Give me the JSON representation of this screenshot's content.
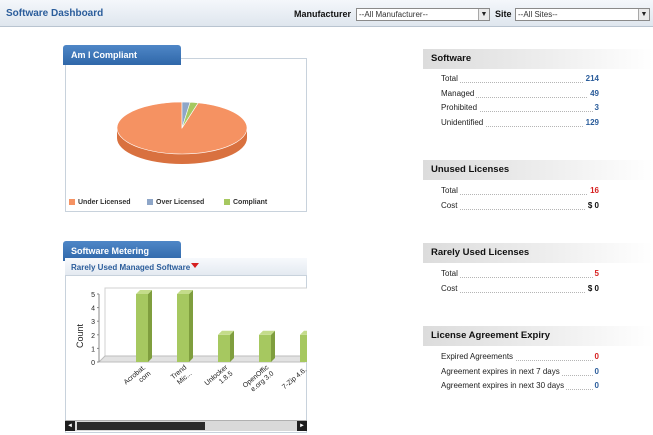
{
  "header": {
    "title": "Software Dashboard",
    "manufacturer_label": "Manufacturer",
    "manufacturer_value": "--All Manufacturer--",
    "site_label": "Site",
    "site_value": "--All Sites--"
  },
  "compliance": {
    "title": "Am I Compliant",
    "legend": [
      "Under Licensed",
      "Over Licensed",
      "Compliant"
    ],
    "colors": {
      "under": "#f59262",
      "over": "#8ea6c8",
      "compliant": "#a6c860"
    }
  },
  "chart_data": {
    "type": "pie",
    "categories": [
      "Under Licensed",
      "Over Licensed",
      "Compliant"
    ],
    "values": [
      96,
      2,
      2
    ]
  },
  "metering": {
    "title": "Software Metering",
    "filter_label": "Rarely Used Managed Software",
    "chart": {
      "type": "bar",
      "ylabel": "Count",
      "ylim": [
        0,
        5
      ],
      "yticks": [
        "0",
        "1",
        "2",
        "3",
        "4",
        "5"
      ],
      "categories": [
        [
          "Acrobat.",
          "com"
        ],
        [
          "Trend",
          "Mic..."
        ],
        [
          "Unlocker",
          "1.8.5"
        ],
        [
          "OpenOffic",
          "e.org 3.0"
        ],
        [
          "7-Zip 4.6..."
        ]
      ],
      "values": [
        5,
        5,
        2,
        2,
        2
      ],
      "bar_color": "#a6c860"
    },
    "scroll": {
      "left": "◄",
      "right": "►"
    }
  },
  "software": {
    "title": "Software",
    "rows": [
      {
        "label": "Total",
        "value": "214"
      },
      {
        "label": "Managed",
        "value": "49"
      },
      {
        "label": "Prohibited",
        "value": "3"
      },
      {
        "label": "Unidentified",
        "value": "129"
      }
    ]
  },
  "unused": {
    "title": "Unused Licenses",
    "rows": [
      {
        "label": "Total",
        "value": "16"
      },
      {
        "label": "Cost",
        "value": "$ 0"
      }
    ]
  },
  "rarely": {
    "title": "Rarely Used Licenses",
    "rows": [
      {
        "label": "Total",
        "value": "5"
      },
      {
        "label": "Cost",
        "value": "$ 0"
      }
    ]
  },
  "expiry": {
    "title": "License Agreement Expiry",
    "rows": [
      {
        "label": "Expired Agreements",
        "value": "0"
      },
      {
        "label": "Agreement expires in next 7 days",
        "value": "0"
      },
      {
        "label": "Agreement expires in next 30 days",
        "value": "0"
      }
    ]
  },
  "icons": {
    "dropdown": "▼",
    "sort_caret": "chevron-down-icon"
  }
}
